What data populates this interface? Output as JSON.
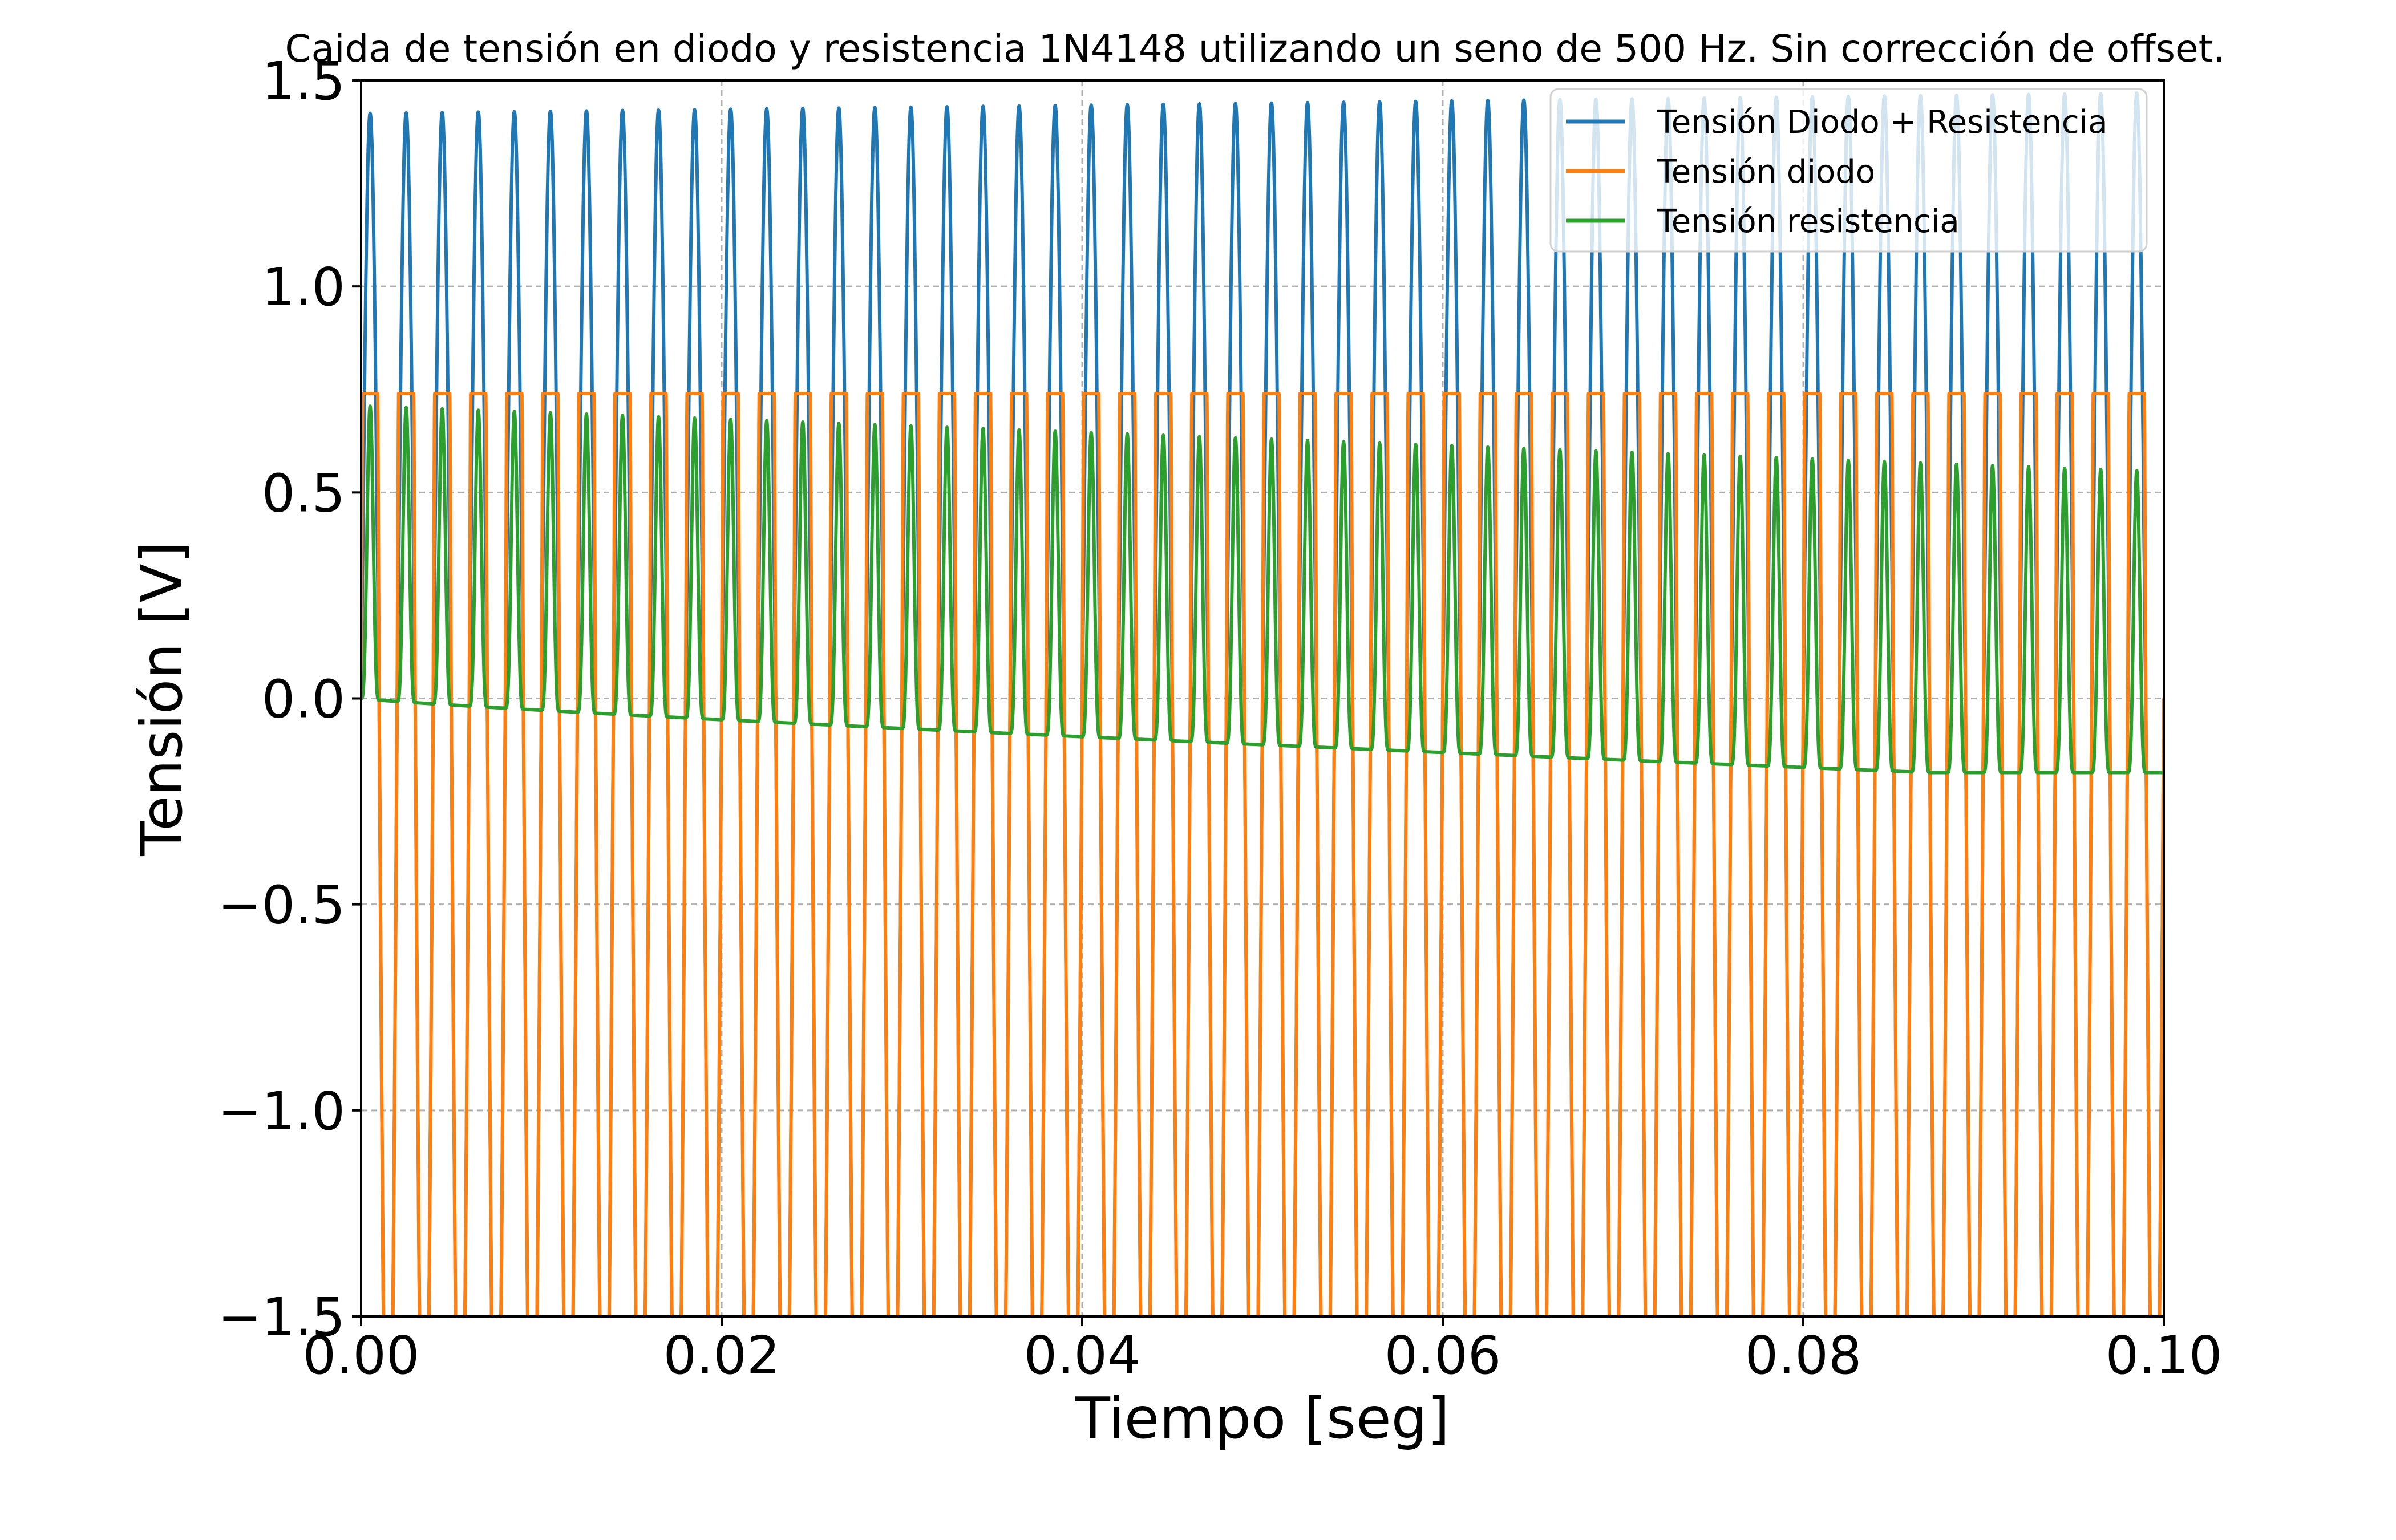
{
  "chart_data": {
    "type": "line",
    "title": "Caida de tensión en diodo y resistencia 1N4148 utilizando un seno de 500 Hz. Sin corrección de offset.",
    "xlabel": "Tiempo [seg]",
    "ylabel": "Tensión [V]",
    "xlim": [
      0.0,
      0.1
    ],
    "ylim": [
      -1.5,
      1.5
    ],
    "x_ticks": [
      "0.00",
      "0.02",
      "0.04",
      "0.06",
      "0.08",
      "0.10"
    ],
    "y_ticks": [
      "−1.5",
      "−1.0",
      "−0.5",
      "0.0",
      "0.5",
      "1.0",
      "1.5"
    ],
    "x_tick_values": [
      0.0,
      0.02,
      0.04,
      0.06,
      0.08,
      0.1
    ],
    "y_tick_values": [
      -1.5,
      -1.0,
      -0.5,
      0.0,
      0.5,
      1.0,
      1.5
    ],
    "grid": true,
    "legend_position": "top-right",
    "signal_frequency_hz": 500,
    "series": [
      {
        "name": "Tensión Diodo + Resistencia",
        "color": "#1f77b4",
        "description": "half-wave positive peaks",
        "peak_start": 1.42,
        "peak_end": 1.47,
        "negative_level": "below -1.5 (clipped)"
      },
      {
        "name": "Tensión diodo",
        "color": "#ff7f0e",
        "positive_clamp": 0.74,
        "negative_level": "below -1.5 (clipped)"
      },
      {
        "name": "Tensión resistencia",
        "color": "#2ca02c",
        "peak_start": 0.71,
        "peak_end": 0.55,
        "baseline_start": 0.0,
        "baseline_end": -0.18
      }
    ]
  }
}
